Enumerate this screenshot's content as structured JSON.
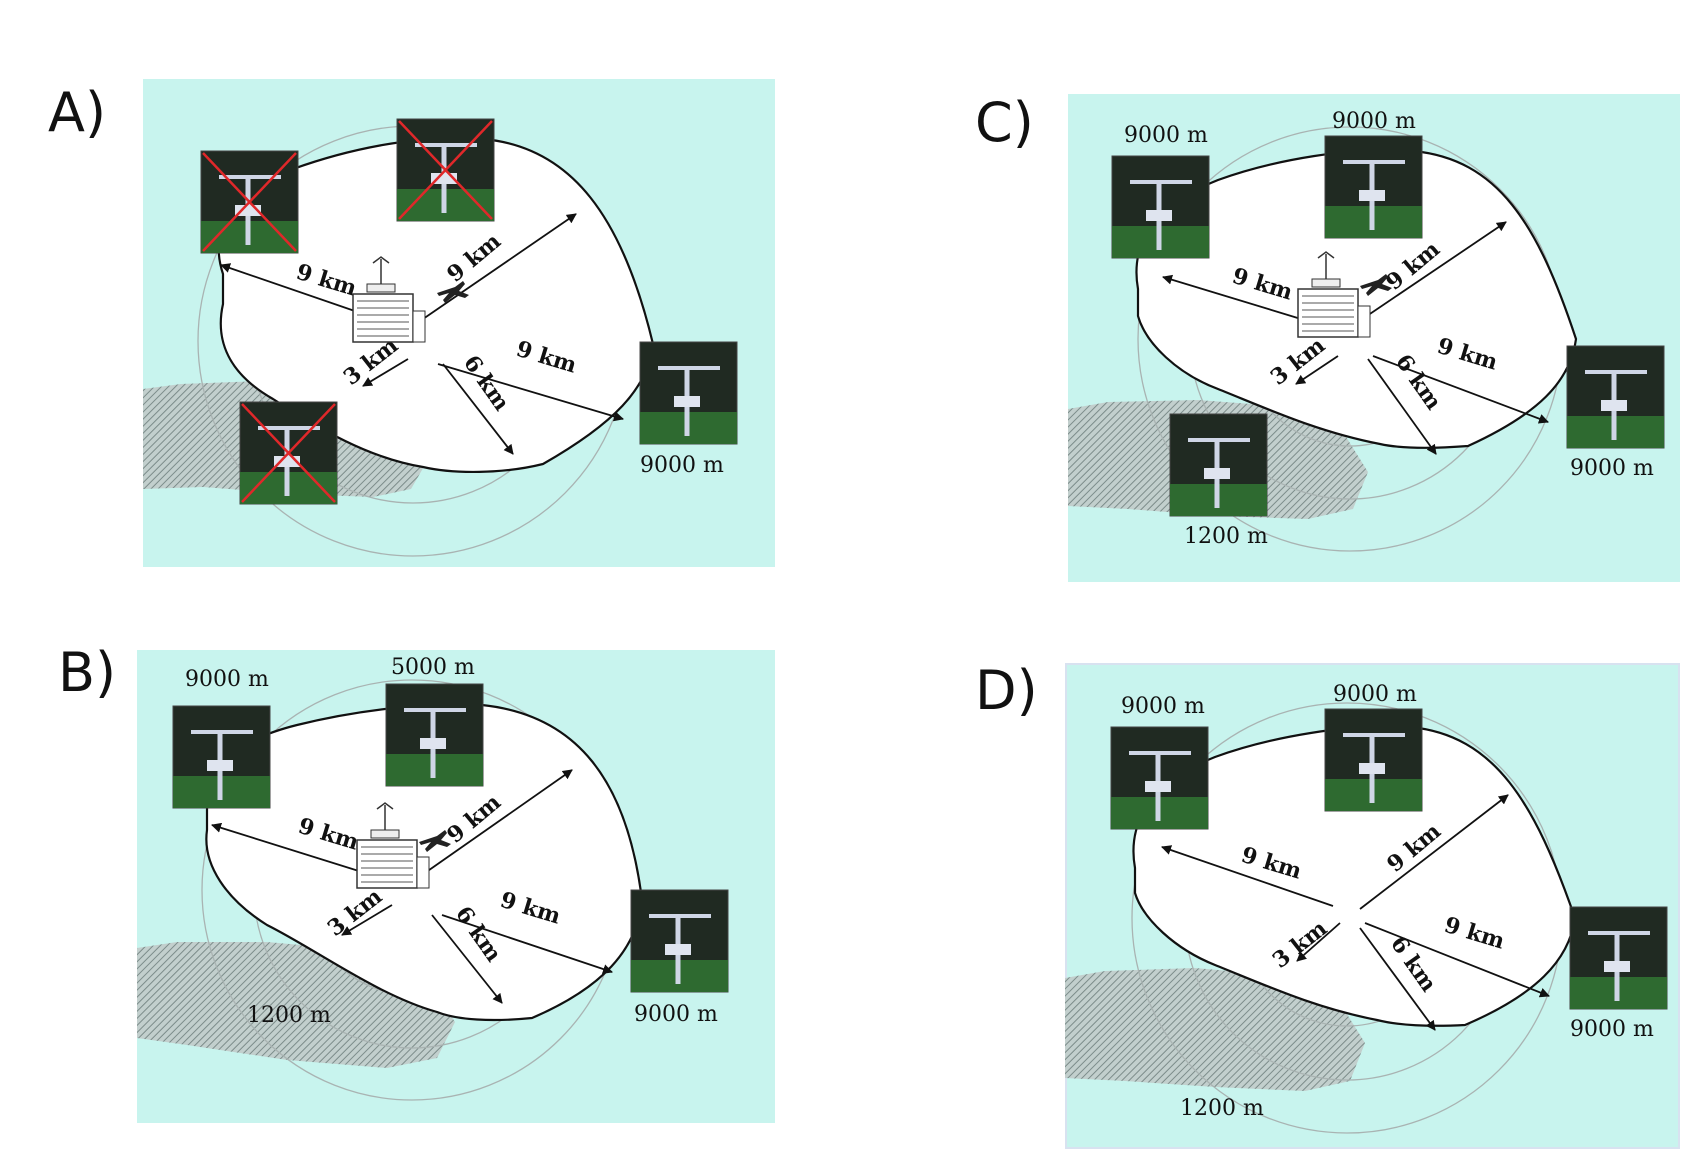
{
  "colors": {
    "background": "#c8f4ee",
    "hatch": "#8a9a98",
    "ring": "#a9b3b2",
    "station_bg": "#202a22",
    "grass": "#2e6a30",
    "cross": "#e0282a"
  },
  "panels": [
    {
      "id": "A",
      "label": "A)",
      "range_labels": {
        "upper_left": "9 km",
        "upper_right": "9 km",
        "right": "9 km",
        "lower_middle": "6 km",
        "lower_left": "3 km"
      },
      "stations": [
        {
          "position": "upper-left",
          "altitude": "",
          "crossed": true
        },
        {
          "position": "top",
          "altitude": "",
          "crossed": true
        },
        {
          "position": "right",
          "altitude": "9000 m",
          "crossed": false
        },
        {
          "position": "lower-left",
          "altitude": "",
          "crossed": true
        }
      ],
      "has_radar": true
    },
    {
      "id": "B",
      "label": "B)",
      "range_labels": {
        "upper_left": "9 km",
        "upper_right": "9 km",
        "right": "9 km",
        "lower_middle": "6 km",
        "lower_left": "3 km"
      },
      "stations": [
        {
          "position": "upper-left",
          "altitude": "9000 m",
          "crossed": false
        },
        {
          "position": "top",
          "altitude": "5000 m",
          "crossed": false
        },
        {
          "position": "right",
          "altitude": "9000 m",
          "crossed": false
        }
      ],
      "terrain_label": "1200 m",
      "has_radar": true
    },
    {
      "id": "C",
      "label": "C)",
      "range_labels": {
        "upper_left": "9 km",
        "upper_right": "9 km",
        "right": "9 km",
        "lower_middle": "6 km",
        "lower_left": "3 km"
      },
      "stations": [
        {
          "position": "upper-left",
          "altitude": "9000 m",
          "crossed": false
        },
        {
          "position": "top",
          "altitude": "9000 m",
          "crossed": false
        },
        {
          "position": "right",
          "altitude": "9000 m",
          "crossed": false
        },
        {
          "position": "lower-left",
          "altitude": "1200 m",
          "crossed": false
        }
      ],
      "has_radar": true
    },
    {
      "id": "D",
      "label": "D)",
      "range_labels": {
        "upper_left": "9 km",
        "upper_right": "9 km",
        "right": "9 km",
        "lower_middle": "6 km",
        "lower_left": "3 km"
      },
      "stations": [
        {
          "position": "upper-left",
          "altitude": "9000 m",
          "crossed": false
        },
        {
          "position": "top",
          "altitude": "9000 m",
          "crossed": false
        },
        {
          "position": "right",
          "altitude": "9000 m",
          "crossed": false
        }
      ],
      "terrain_label": "1200 m",
      "has_radar": false
    }
  ]
}
